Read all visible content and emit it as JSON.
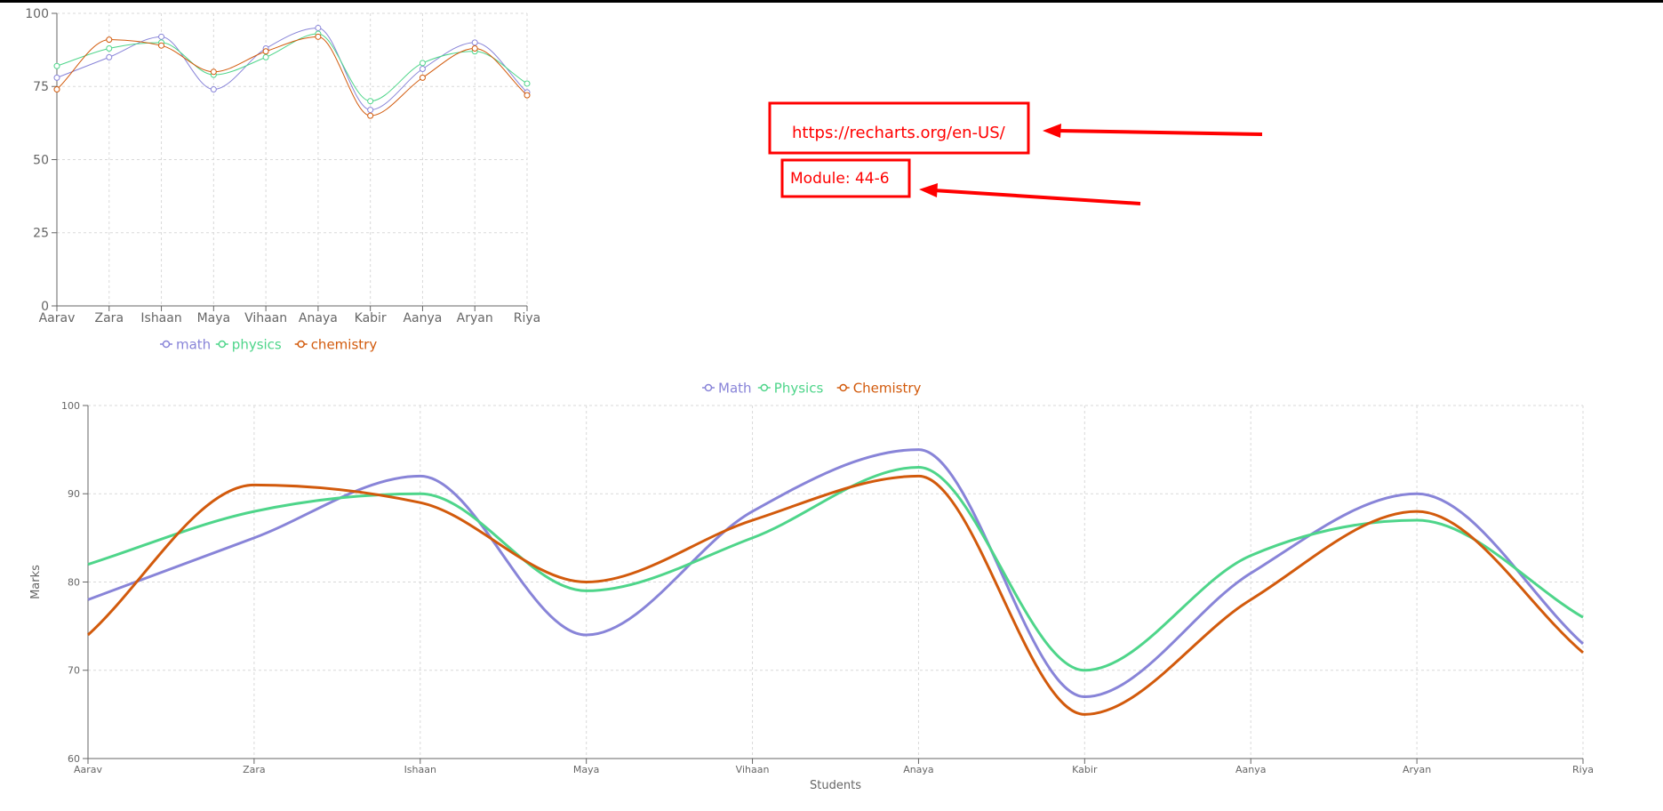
{
  "colors": {
    "math": "#8884d8",
    "physics": "#4ed58a",
    "chemistry": "#d25a0c",
    "grid": "#d9d9d9",
    "axis": "#666666",
    "annotation": "#ff0000"
  },
  "annotations": {
    "url_text": "https://recharts.org/en-US/",
    "module_text": "Module: 44-6"
  },
  "chart_data": [
    {
      "type": "line",
      "curve": "monotone",
      "categories": [
        "Aarav",
        "Zara",
        "Ishaan",
        "Maya",
        "Vihaan",
        "Anaya",
        "Kabir",
        "Aanya",
        "Aryan",
        "Riya"
      ],
      "series": [
        {
          "name": "math",
          "values": [
            78,
            85,
            92,
            74,
            88,
            95,
            67,
            81,
            90,
            73
          ]
        },
        {
          "name": "physics",
          "values": [
            82,
            88,
            90,
            79,
            85,
            93,
            70,
            83,
            87,
            76
          ]
        },
        {
          "name": "chemistry",
          "values": [
            74,
            91,
            89,
            80,
            87,
            92,
            65,
            78,
            88,
            72
          ]
        }
      ],
      "yticks": [
        0,
        25,
        50,
        75,
        100
      ],
      "ylim": [
        0,
        100
      ],
      "xlabel": "",
      "ylabel": "",
      "grid": true,
      "dots": true,
      "legend": "bottom-center"
    },
    {
      "type": "line",
      "curve": "monotone",
      "categories": [
        "Aarav",
        "Zara",
        "Ishaan",
        "Maya",
        "Vihaan",
        "Anaya",
        "Kabir",
        "Aanya",
        "Aryan",
        "Riya"
      ],
      "series": [
        {
          "name": "Math",
          "values": [
            78,
            85,
            92,
            74,
            88,
            95,
            67,
            81,
            90,
            73
          ]
        },
        {
          "name": "Physics",
          "values": [
            82,
            88,
            90,
            79,
            85,
            93,
            70,
            83,
            87,
            76
          ]
        },
        {
          "name": "Chemistry",
          "values": [
            74,
            91,
            89,
            80,
            87,
            92,
            65,
            78,
            88,
            72
          ]
        }
      ],
      "yticks": [
        60,
        70,
        80,
        90,
        100
      ],
      "ylim": [
        60,
        100
      ],
      "xlabel": "Students",
      "ylabel": "Marks",
      "grid": true,
      "dots": false,
      "legend": "top-center"
    }
  ]
}
